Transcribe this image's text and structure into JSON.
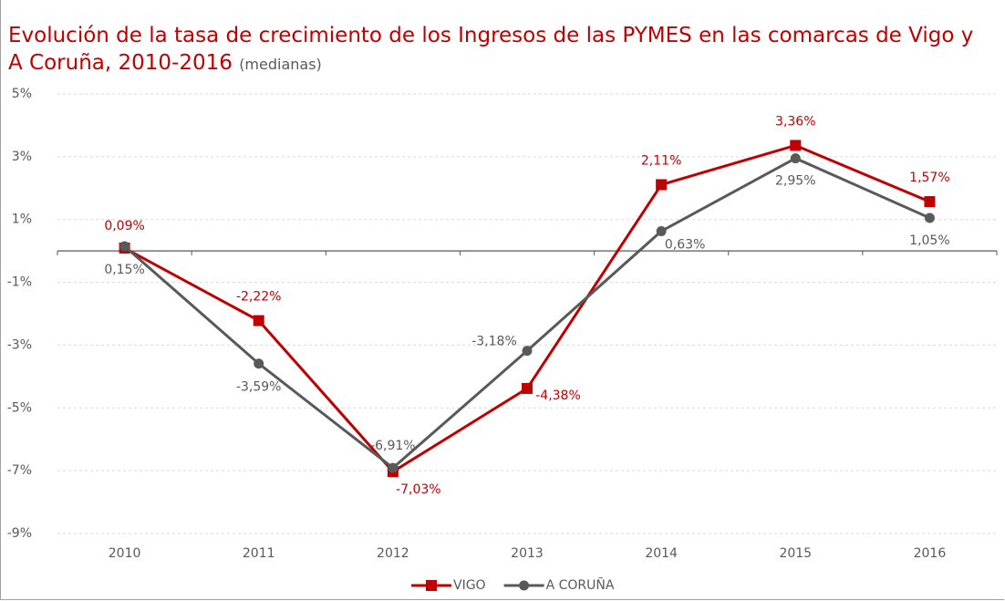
{
  "chart_data": {
    "type": "line",
    "title": "Evolución de la tasa de crecimiento de los Ingresos de las PYMES en las comarcas de Vigo y A Coruña, 2010-2016",
    "subtitle": "(medianas)",
    "categories": [
      "2010",
      "2011",
      "2012",
      "2013",
      "2014",
      "2015",
      "2016"
    ],
    "series": [
      {
        "name": "VIGO",
        "color": "#c00000",
        "marker": "square",
        "values": [
          0.09,
          -2.22,
          -7.03,
          -4.38,
          2.11,
          3.36,
          1.57
        ],
        "value_labels": [
          "0,09%",
          "-2,22%",
          "-7,03%",
          "-4,38%",
          "2,11%",
          "3,36%",
          "1,57%"
        ]
      },
      {
        "name": "A CORUÑA",
        "color": "#595959",
        "marker": "circle",
        "values": [
          0.15,
          -3.59,
          -6.91,
          -3.18,
          0.63,
          2.95,
          1.05
        ],
        "value_labels": [
          "0,15%",
          "-3,59%",
          "-6,91%",
          "-3,18%",
          "0,63%",
          "2,95%",
          "1,05%"
        ]
      }
    ],
    "ylim": [
      -9,
      5
    ],
    "yticks": [
      {
        "value": -9,
        "label": "-9%"
      },
      {
        "value": -7,
        "label": "-7%"
      },
      {
        "value": -5,
        "label": "-5%"
      },
      {
        "value": -3,
        "label": "-3%"
      },
      {
        "value": -1,
        "label": "-1%"
      },
      {
        "value": 1,
        "label": "1%"
      },
      {
        "value": 3,
        "label": "3%"
      },
      {
        "value": 5,
        "label": "5%"
      }
    ],
    "grid": true,
    "legend": "bottom"
  }
}
